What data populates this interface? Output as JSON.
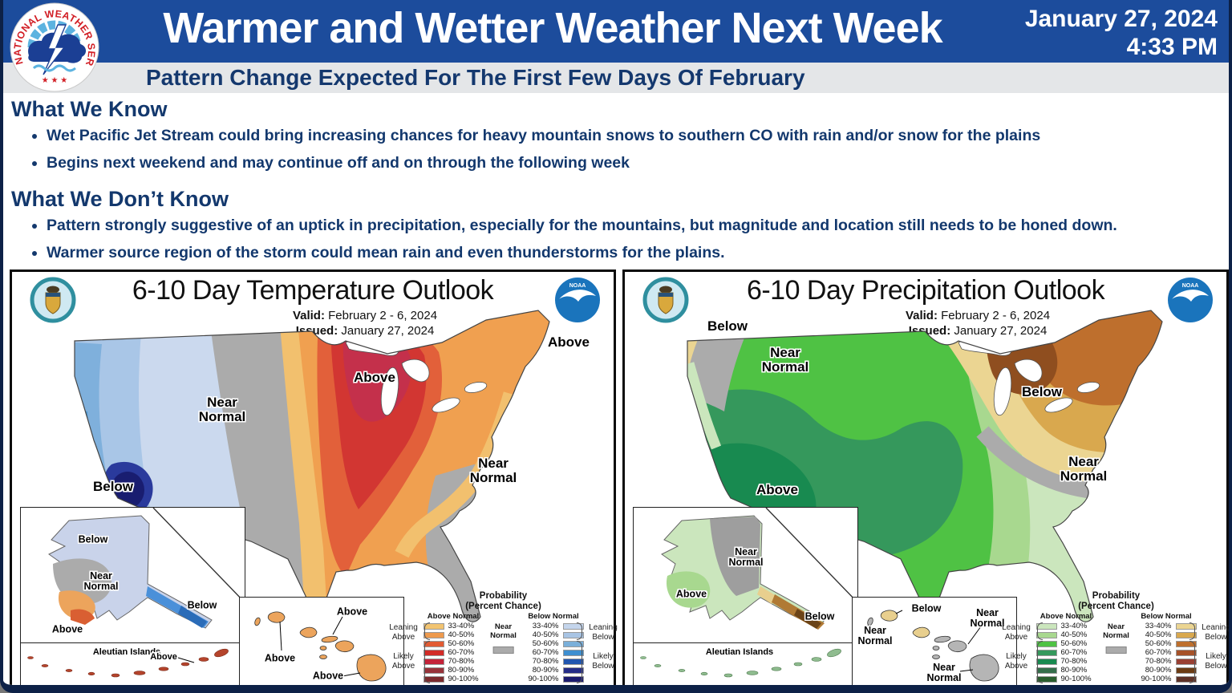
{
  "header": {
    "title": "Warmer and Wetter Weather Next Week",
    "date_line1": "January 27, 2024",
    "date_line2": "4:33 PM",
    "subtitle": "Pattern Change Expected For The First Few Days Of February",
    "bg_color": "#1c4c9c",
    "subtitle_bg": "#e4e6e8",
    "logo_name": "National Weather Service"
  },
  "sections": {
    "know": {
      "heading": "What We Know",
      "bullets": [
        "Wet Pacific Jet Stream could bring increasing chances for heavy mountain snows to southern CO with rain and/or snow for the plains",
        "Begins next weekend and may continue off and on through the following week"
      ]
    },
    "dont_know": {
      "heading": "What We Don’t Know",
      "bullets": [
        "Pattern strongly suggestive of an uptick in precipitation, especially for the mountains, but magnitude and location still needs to be honed down.",
        "Warmer source region of the storm could mean rain and even thunderstorms for the plains."
      ]
    }
  },
  "temperature_map": {
    "title": "6-10 Day Temperature Outlook",
    "valid_label": "Valid:",
    "valid_value": "February 2 - 6, 2024",
    "issued_label": "Issued:",
    "issued_value": "January 27, 2024",
    "conus_labels": {
      "above_midwest": "Above",
      "near_normal_west": "Near\nNormal",
      "below_socal": "Below",
      "near_normal_southeast": "Near\nNormal",
      "above_northeast": "Above"
    },
    "alaska_labels": {
      "below_north": "Below",
      "near_normal": "Near\nNormal",
      "above_southwest": "Above",
      "below_southeast": "Below",
      "aleutian": "Aleutian Islands",
      "above_aleutian": "Above"
    },
    "hawaii_labels": {
      "above_kauai": "Above",
      "above_maui": "Above",
      "above_big_island": "Above"
    },
    "legend": {
      "title_line1": "Probability",
      "title_line2": "(Percent Chance)",
      "above_header": "Above Normal",
      "below_header": "Below Normal",
      "near_label": "Near\nNormal",
      "near_color": "#ababab",
      "rows": [
        "33-40%",
        "40-50%",
        "50-60%",
        "60-70%",
        "70-80%",
        "80-90%",
        "90-100%"
      ],
      "above_colors": [
        "#f2c471",
        "#ee9a4d",
        "#e25b33",
        "#d22b27",
        "#c42339",
        "#97333a",
        "#7c2b2e"
      ],
      "below_colors": [
        "#c4d5ec",
        "#a8c4e4",
        "#7aafd9",
        "#3e8fd0",
        "#2156b0",
        "#252d87",
        "#1c1c6e"
      ],
      "leaning_above": "Leaning Above",
      "likely_above": "Likely Above",
      "leaning_below": "Leaning Below",
      "likely_below": "Likely Below"
    }
  },
  "precipitation_map": {
    "title": "6-10 Day Precipitation Outlook",
    "valid_label": "Valid:",
    "valid_value": "February 2 - 6, 2024",
    "issued_label": "Issued:",
    "issued_value": "January 27, 2024",
    "conus_labels": {
      "below_northwest": "Below",
      "near_normal_northwest": "Near\nNormal",
      "above_southwest": "Above",
      "below_great_lakes": "Below",
      "near_normal_south": "Near\nNormal"
    },
    "alaska_labels": {
      "near_normal": "Near\nNormal",
      "above_west": "Above",
      "below_southeast": "Below",
      "aleutian": "Aleutian Islands"
    },
    "hawaii_labels": {
      "below_kauai": "Below",
      "near_normal_left": "Near\nNormal",
      "near_normal_right": "Near\nNormal",
      "near_normal_big_island": "Near\nNormal"
    },
    "legend": {
      "title_line1": "Probability",
      "title_line2": "(Percent Chance)",
      "above_header": "Above Normal",
      "below_header": "Below Normal",
      "near_label": "Near\nNormal",
      "near_color": "#ababab",
      "rows": [
        "33-40%",
        "40-50%",
        "50-60%",
        "60-70%",
        "70-80%",
        "80-90%",
        "90-100%"
      ],
      "above_colors": [
        "#cbe6bd",
        "#a8d88f",
        "#4fc244",
        "#35985c",
        "#188a50",
        "#356e4b",
        "#2a5e2e"
      ],
      "below_colors": [
        "#ebd592",
        "#d9a84e",
        "#be6f2d",
        "#a65229",
        "#994033",
        "#6b3c14",
        "#5e3227"
      ],
      "leaning_above": "Leaning Above",
      "likely_above": "Likely Above",
      "leaning_below": "Leaning Below",
      "likely_below": "Likely Below"
    }
  }
}
